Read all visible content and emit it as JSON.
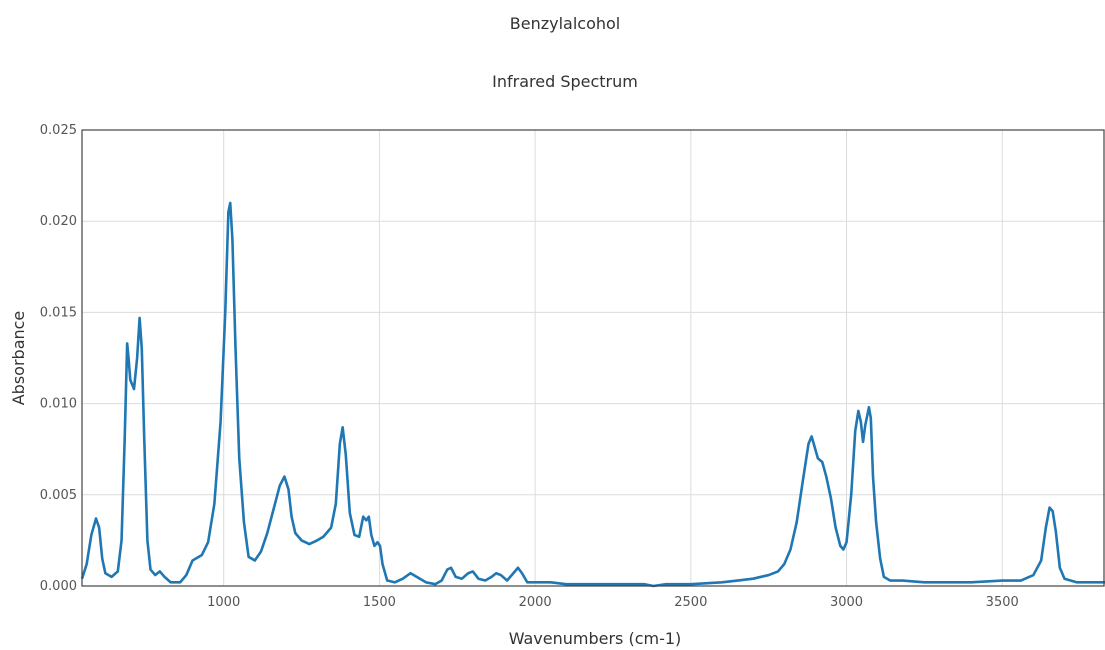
{
  "chart_data": {
    "type": "line",
    "title": "Benzylalcohol",
    "subtitle": "Infrared Spectrum",
    "xlabel": "Wavenumbers (cm-1)",
    "ylabel": "Absorbance",
    "xlim": [
      545,
      3830
    ],
    "ylim": [
      0,
      0.025
    ],
    "xticks": [
      1000,
      1500,
      2000,
      2500,
      3000,
      3500
    ],
    "xtick_labels": [
      "1000",
      "1500",
      "2000",
      "2500",
      "3000",
      "3500"
    ],
    "yticks": [
      0,
      0.005,
      0.01,
      0.015,
      0.02,
      0.025
    ],
    "ytick_labels": [
      "0.000",
      "0.005",
      "0.010",
      "0.015",
      "0.020",
      "0.025"
    ],
    "grid": true,
    "line_color": "#1f77b4",
    "series": [
      {
        "points": [
          [
            545,
            0.0004
          ],
          [
            560,
            0.0012
          ],
          [
            575,
            0.0028
          ],
          [
            590,
            0.0037
          ],
          [
            600,
            0.0032
          ],
          [
            610,
            0.0015
          ],
          [
            620,
            0.0007
          ],
          [
            640,
            0.0005
          ],
          [
            660,
            0.0008
          ],
          [
            672,
            0.0025
          ],
          [
            682,
            0.008
          ],
          [
            690,
            0.0133
          ],
          [
            695,
            0.0124
          ],
          [
            700,
            0.0113
          ],
          [
            712,
            0.0108
          ],
          [
            722,
            0.0125
          ],
          [
            730,
            0.0147
          ],
          [
            737,
            0.013
          ],
          [
            745,
            0.008
          ],
          [
            755,
            0.0025
          ],
          [
            765,
            0.0009
          ],
          [
            780,
            0.0006
          ],
          [
            795,
            0.0008
          ],
          [
            810,
            0.0005
          ],
          [
            830,
            0.0002
          ],
          [
            860,
            0.0002
          ],
          [
            880,
            0.0006
          ],
          [
            900,
            0.0014
          ],
          [
            930,
            0.0017
          ],
          [
            950,
            0.0024
          ],
          [
            970,
            0.0045
          ],
          [
            990,
            0.009
          ],
          [
            1005,
            0.015
          ],
          [
            1015,
            0.0205
          ],
          [
            1021,
            0.021
          ],
          [
            1028,
            0.019
          ],
          [
            1038,
            0.013
          ],
          [
            1050,
            0.007
          ],
          [
            1065,
            0.0035
          ],
          [
            1080,
            0.0016
          ],
          [
            1100,
            0.0014
          ],
          [
            1120,
            0.0019
          ],
          [
            1140,
            0.0029
          ],
          [
            1160,
            0.0042
          ],
          [
            1180,
            0.0055
          ],
          [
            1195,
            0.006
          ],
          [
            1208,
            0.0053
          ],
          [
            1218,
            0.0038
          ],
          [
            1230,
            0.0029
          ],
          [
            1250,
            0.0025
          ],
          [
            1275,
            0.0023
          ],
          [
            1300,
            0.0025
          ],
          [
            1320,
            0.0027
          ],
          [
            1345,
            0.0032
          ],
          [
            1360,
            0.0045
          ],
          [
            1373,
            0.0078
          ],
          [
            1382,
            0.0087
          ],
          [
            1392,
            0.0072
          ],
          [
            1405,
            0.004
          ],
          [
            1420,
            0.0028
          ],
          [
            1435,
            0.0027
          ],
          [
            1448,
            0.0038
          ],
          [
            1458,
            0.0036
          ],
          [
            1466,
            0.0038
          ],
          [
            1474,
            0.0028
          ],
          [
            1484,
            0.0022
          ],
          [
            1494,
            0.0024
          ],
          [
            1502,
            0.0022
          ],
          [
            1510,
            0.0012
          ],
          [
            1525,
            0.0003
          ],
          [
            1550,
            0.0002
          ],
          [
            1575,
            0.0004
          ],
          [
            1600,
            0.0007
          ],
          [
            1620,
            0.0005
          ],
          [
            1650,
            0.0002
          ],
          [
            1680,
            0.0001
          ],
          [
            1700,
            0.0003
          ],
          [
            1718,
            0.0009
          ],
          [
            1730,
            0.001
          ],
          [
            1745,
            0.0005
          ],
          [
            1765,
            0.0004
          ],
          [
            1785,
            0.0007
          ],
          [
            1800,
            0.0008
          ],
          [
            1818,
            0.0004
          ],
          [
            1840,
            0.0003
          ],
          [
            1860,
            0.0005
          ],
          [
            1875,
            0.0007
          ],
          [
            1890,
            0.0006
          ],
          [
            1910,
            0.0003
          ],
          [
            1930,
            0.0007
          ],
          [
            1945,
            0.001
          ],
          [
            1958,
            0.0007
          ],
          [
            1975,
            0.0002
          ],
          [
            2000,
            0.0002
          ],
          [
            2050,
            0.0002
          ],
          [
            2100,
            0.0001
          ],
          [
            2200,
            0.0001
          ],
          [
            2300,
            0.0001
          ],
          [
            2350,
            0.0001
          ],
          [
            2380,
            0.0
          ],
          [
            2420,
            0.0001
          ],
          [
            2500,
            0.0001
          ],
          [
            2600,
            0.0002
          ],
          [
            2650,
            0.0003
          ],
          [
            2700,
            0.0004
          ],
          [
            2750,
            0.0006
          ],
          [
            2780,
            0.0008
          ],
          [
            2800,
            0.0012
          ],
          [
            2820,
            0.002
          ],
          [
            2840,
            0.0035
          ],
          [
            2860,
            0.0058
          ],
          [
            2878,
            0.0078
          ],
          [
            2888,
            0.0082
          ],
          [
            2898,
            0.0076
          ],
          [
            2908,
            0.007
          ],
          [
            2922,
            0.0068
          ],
          [
            2935,
            0.006
          ],
          [
            2950,
            0.0048
          ],
          [
            2965,
            0.0032
          ],
          [
            2980,
            0.0022
          ],
          [
            2990,
            0.002
          ],
          [
            3000,
            0.0024
          ],
          [
            3015,
            0.005
          ],
          [
            3028,
            0.0085
          ],
          [
            3038,
            0.0096
          ],
          [
            3046,
            0.009
          ],
          [
            3053,
            0.0079
          ],
          [
            3060,
            0.0088
          ],
          [
            3072,
            0.0098
          ],
          [
            3078,
            0.0092
          ],
          [
            3085,
            0.006
          ],
          [
            3095,
            0.0035
          ],
          [
            3108,
            0.0015
          ],
          [
            3120,
            0.0005
          ],
          [
            3140,
            0.0003
          ],
          [
            3180,
            0.0003
          ],
          [
            3250,
            0.0002
          ],
          [
            3300,
            0.0002
          ],
          [
            3400,
            0.0002
          ],
          [
            3500,
            0.0003
          ],
          [
            3560,
            0.0003
          ],
          [
            3600,
            0.0006
          ],
          [
            3625,
            0.0014
          ],
          [
            3640,
            0.0032
          ],
          [
            3652,
            0.0043
          ],
          [
            3662,
            0.0041
          ],
          [
            3672,
            0.003
          ],
          [
            3685,
            0.001
          ],
          [
            3700,
            0.0004
          ],
          [
            3740,
            0.0002
          ],
          [
            3800,
            0.0002
          ],
          [
            3830,
            0.0002
          ]
        ]
      }
    ]
  }
}
